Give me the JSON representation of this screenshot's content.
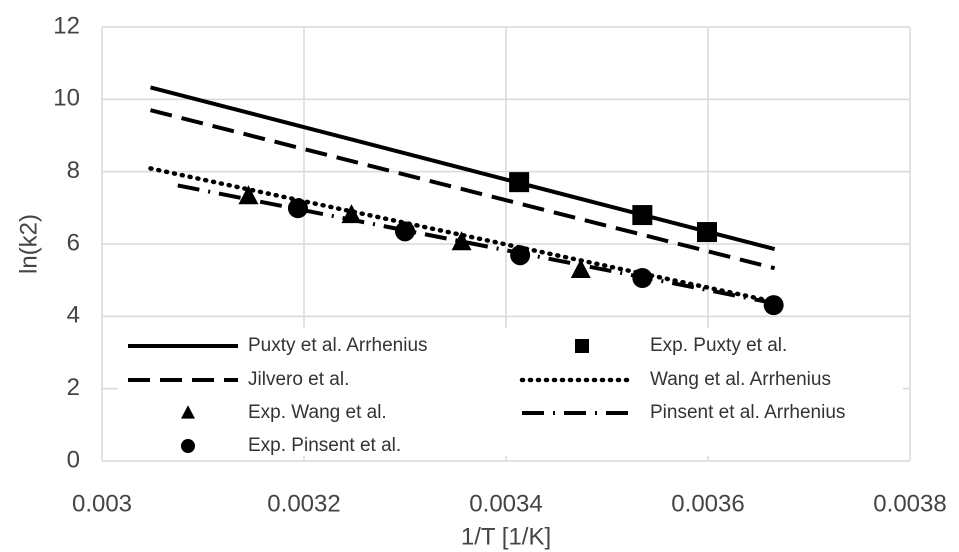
{
  "chart_data": {
    "type": "line",
    "x_label": "1/T [1/K]",
    "y_label": "ln(k2)",
    "xlim": [
      0.003,
      0.0038
    ],
    "xticks": [
      0.003,
      0.0032,
      0.0034,
      0.0036,
      0.0038
    ],
    "ylim": [
      0,
      12
    ],
    "yticks": [
      0,
      2,
      4,
      6,
      8,
      10,
      12
    ],
    "grid": true,
    "series": [
      {
        "name": "Puxty et al. Arrhenius",
        "color": "#000000",
        "style": "solid",
        "x": [
          0.003048,
          0.003666
        ],
        "values": [
          10.33,
          5.86
        ]
      },
      {
        "name": "Exp. Puxty et al.",
        "color": "#000000",
        "marker": "square",
        "x": [
          0.003413,
          0.003535,
          0.003599
        ],
        "values": [
          7.71,
          6.8,
          6.33
        ]
      },
      {
        "name": "Jilvero et al.",
        "color": "#000000",
        "style": "dash",
        "x": [
          0.003048,
          0.003666
        ],
        "values": [
          9.7,
          5.33
        ]
      },
      {
        "name": "Wang et al. Arrhenius",
        "color": "#000000",
        "style": "dot",
        "x": [
          0.003048,
          0.003666
        ],
        "values": [
          8.09,
          4.4
        ]
      },
      {
        "name": "Exp. Wang et al.",
        "color": "#000000",
        "marker": "triangle",
        "x": [
          0.003145,
          0.003247,
          0.003356,
          0.003474
        ],
        "values": [
          7.32,
          6.8,
          6.05,
          5.28
        ]
      },
      {
        "name": "Pinsent et al. Arrhenius",
        "color": "#000000",
        "style": "dashdot",
        "x": [
          0.003075,
          0.003666
        ],
        "values": [
          7.62,
          4.36
        ]
      },
      {
        "name": "Exp. Pinsent et al.",
        "color": "#000000",
        "marker": "circle",
        "x": [
          0.003194,
          0.0033,
          0.003414,
          0.003535,
          0.003665
        ],
        "values": [
          6.99,
          6.35,
          5.69,
          5.06,
          4.31
        ]
      }
    ]
  }
}
